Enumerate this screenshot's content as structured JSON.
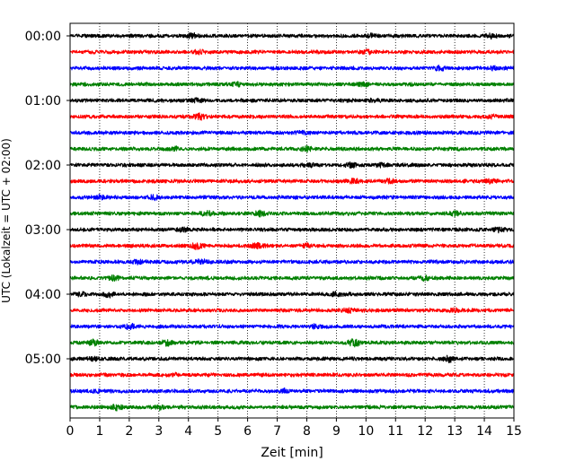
{
  "chart_data": {
    "type": "line",
    "title": "",
    "xlabel": "Zeit  [min]",
    "ylabel": "UTC (Lokalzeit = UTC + 02:00)",
    "x_range": [
      0,
      15
    ],
    "x_ticks": [
      0,
      1,
      2,
      3,
      4,
      5,
      6,
      7,
      8,
      9,
      10,
      11,
      12,
      13,
      14,
      15
    ],
    "x_tick_labels": [
      "0",
      "1",
      "2",
      "3",
      "4",
      "5",
      "6",
      "7",
      "8",
      "9",
      "10",
      "11",
      "12",
      "13",
      "14",
      "15"
    ],
    "y_tick_labels": [
      "00:00",
      "01:00",
      "02:00",
      "03:00",
      "04:00",
      "05:00"
    ],
    "grid_x": true,
    "grid_style": "dotted",
    "trace_interval_min": 15,
    "color_cycle": [
      "#000000",
      "#ff0000",
      "#0000ff",
      "#008000"
    ],
    "series": [
      {
        "start": "00:00",
        "color": "#000000",
        "events": [
          [
            4.1,
            2.0
          ],
          [
            10.2,
            2.0
          ],
          [
            14.2,
            1.6
          ]
        ]
      },
      {
        "start": "00:15",
        "color": "#ff0000",
        "events": [
          [
            4.4,
            1.6
          ],
          [
            10.1,
            1.5
          ]
        ]
      },
      {
        "start": "00:30",
        "color": "#0000ff",
        "events": [
          [
            12.5,
            1.8
          ],
          [
            14.3,
            1.8
          ]
        ]
      },
      {
        "start": "00:45",
        "color": "#008000",
        "events": [
          [
            5.6,
            1.5
          ],
          [
            9.9,
            1.8
          ]
        ]
      },
      {
        "start": "01:00",
        "color": "#000000",
        "events": [
          [
            4.3,
            1.6
          ],
          [
            10.3,
            1.5
          ]
        ]
      },
      {
        "start": "01:15",
        "color": "#ff0000",
        "events": [
          [
            4.4,
            2.6
          ],
          [
            14.3,
            1.8
          ]
        ]
      },
      {
        "start": "01:30",
        "color": "#0000ff",
        "events": [
          [
            7.8,
            1.4
          ]
        ]
      },
      {
        "start": "01:45",
        "color": "#008000",
        "events": [
          [
            8.0,
            2.2
          ],
          [
            3.5,
            1.4
          ]
        ]
      },
      {
        "start": "02:00",
        "color": "#000000",
        "events": [
          [
            9.5,
            2.4
          ],
          [
            10.5,
            1.8
          ],
          [
            8.1,
            1.3
          ]
        ]
      },
      {
        "start": "02:15",
        "color": "#ff0000",
        "events": [
          [
            9.6,
            1.8
          ],
          [
            10.8,
            1.8
          ],
          [
            14.2,
            2.0
          ]
        ]
      },
      {
        "start": "02:30",
        "color": "#0000ff",
        "events": [
          [
            2.8,
            2.0
          ],
          [
            1.0,
            1.6
          ]
        ]
      },
      {
        "start": "02:45",
        "color": "#008000",
        "events": [
          [
            4.6,
            2.2
          ],
          [
            6.4,
            2.8
          ],
          [
            13.0,
            2.2
          ]
        ]
      },
      {
        "start": "03:00",
        "color": "#000000",
        "events": [
          [
            3.8,
            1.8
          ],
          [
            14.5,
            1.8
          ]
        ]
      },
      {
        "start": "03:15",
        "color": "#ff0000",
        "events": [
          [
            4.3,
            2.6
          ],
          [
            6.3,
            1.8
          ],
          [
            8.0,
            1.6
          ]
        ]
      },
      {
        "start": "03:30",
        "color": "#0000ff",
        "events": [
          [
            4.4,
            2.0
          ],
          [
            2.3,
            1.6
          ]
        ]
      },
      {
        "start": "03:45",
        "color": "#008000",
        "events": [
          [
            1.5,
            2.0
          ],
          [
            12.0,
            1.8
          ]
        ]
      },
      {
        "start": "04:00",
        "color": "#000000",
        "events": [
          [
            1.3,
            2.2
          ],
          [
            0.4,
            1.6
          ],
          [
            9.0,
            1.6
          ]
        ]
      },
      {
        "start": "04:15",
        "color": "#ff0000",
        "events": [
          [
            9.4,
            1.6
          ],
          [
            13.0,
            1.4
          ]
        ]
      },
      {
        "start": "04:30",
        "color": "#0000ff",
        "events": [
          [
            2.0,
            2.0
          ],
          [
            8.3,
            1.8
          ]
        ]
      },
      {
        "start": "04:45",
        "color": "#008000",
        "events": [
          [
            0.8,
            2.6
          ],
          [
            3.3,
            2.2
          ],
          [
            9.6,
            3.2
          ]
        ]
      },
      {
        "start": "05:00",
        "color": "#000000",
        "events": [
          [
            12.8,
            2.4
          ],
          [
            0.8,
            1.6
          ]
        ]
      },
      {
        "start": "05:15",
        "color": "#ff0000",
        "events": [
          [
            3.5,
            1.4
          ]
        ]
      },
      {
        "start": "05:30",
        "color": "#0000ff",
        "events": [
          [
            7.2,
            1.8
          ],
          [
            0.9,
            1.5
          ]
        ]
      },
      {
        "start": "05:45",
        "color": "#008000",
        "events": [
          [
            1.6,
            2.6
          ],
          [
            3.0,
            1.8
          ]
        ]
      }
    ]
  }
}
